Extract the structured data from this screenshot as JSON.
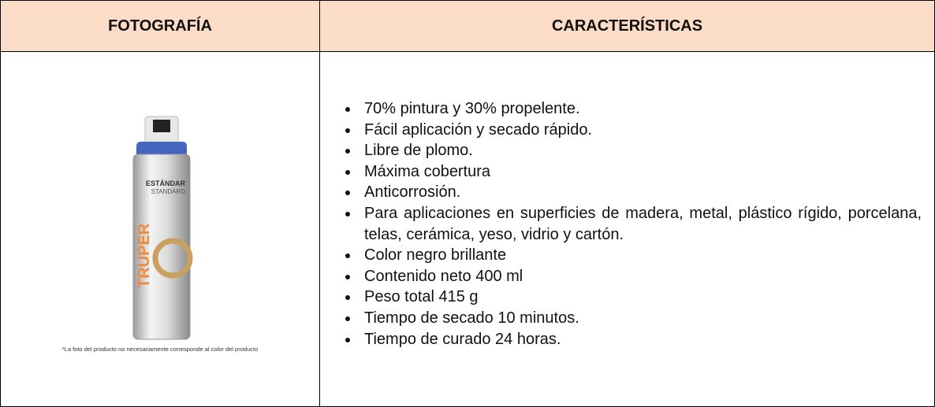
{
  "table": {
    "headers": [
      "FOTOGRAFÍA",
      "CARACTERÍSTICAS"
    ],
    "photo": {
      "brand": "TRUPER",
      "label_es": "ESTÁNDAR",
      "label_en": "STANDARD",
      "caption": "*La foto del producto no necesariamente corresponde al color del producto"
    },
    "features": [
      "70% pintura y 30% propelente.",
      "Fácil aplicación y secado rápido.",
      "Libre de plomo.",
      "Máxima cobertura",
      "Anticorrosión.",
      "Para aplicaciones en superficies de madera, metal, plástico rígido, porcelana, telas, cerámica, yeso, vidrio y cartón.",
      "Color negro brillante",
      "Contenido neto 400 ml",
      "Peso total 415 g",
      "Tiempo de secado 10 minutos.",
      "Tiempo de curado 24 horas."
    ]
  }
}
